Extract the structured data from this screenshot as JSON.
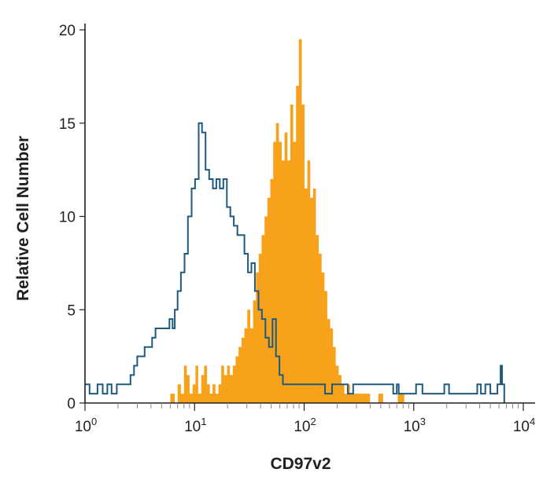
{
  "chart_data": {
    "type": "histogram",
    "title": "",
    "xlabel": "CD97v2",
    "ylabel": "Relative Cell Number",
    "x_scale": "log",
    "xlim": [
      1,
      10000
    ],
    "ylim": [
      0,
      20
    ],
    "x_ticks": [
      {
        "value": 1,
        "base": "10",
        "exp": "0"
      },
      {
        "value": 10,
        "base": "10",
        "exp": "1"
      },
      {
        "value": 100,
        "base": "10",
        "exp": "2"
      },
      {
        "value": 1000,
        "base": "10",
        "exp": "3"
      },
      {
        "value": 10000,
        "base": "10",
        "exp": "4"
      }
    ],
    "y_ticks": [
      "0",
      "5",
      "10",
      "15",
      "20"
    ],
    "grid": false,
    "legend": "none",
    "series": [
      {
        "kind": "filled",
        "color": "#f8a21c",
        "points": [
          [
            6.0,
            0
          ],
          [
            6.0,
            0.5
          ],
          [
            6.6,
            0.5
          ],
          [
            6.6,
            0
          ],
          [
            7.0,
            0
          ],
          [
            7.0,
            1.0
          ],
          [
            7.5,
            1.0
          ],
          [
            7.5,
            0.5
          ],
          [
            8.0,
            0.5
          ],
          [
            8.0,
            2.0
          ],
          [
            8.5,
            2.0
          ],
          [
            8.5,
            1.5
          ],
          [
            9.0,
            1.5
          ],
          [
            9.0,
            0.5
          ],
          [
            9.6,
            0.5
          ],
          [
            9.6,
            1.0
          ],
          [
            10.2,
            1.0
          ],
          [
            10.2,
            2.0
          ],
          [
            10.8,
            2.0
          ],
          [
            10.8,
            0.5
          ],
          [
            11.5,
            0.5
          ],
          [
            11.5,
            1.5
          ],
          [
            12.2,
            1.5
          ],
          [
            12.2,
            2.0
          ],
          [
            13.0,
            2.0
          ],
          [
            13.0,
            1.0
          ],
          [
            13.8,
            1.0
          ],
          [
            13.8,
            0.5
          ],
          [
            14.6,
            0.5
          ],
          [
            14.6,
            1.0
          ],
          [
            15.5,
            1.0
          ],
          [
            15.5,
            0.5
          ],
          [
            16.5,
            0.5
          ],
          [
            16.5,
            1.0
          ],
          [
            17.5,
            1.0
          ],
          [
            17.5,
            2.0
          ],
          [
            18.6,
            2.0
          ],
          [
            18.6,
            1.5
          ],
          [
            19.8,
            1.5
          ],
          [
            19.8,
            2.0
          ],
          [
            21.0,
            2.0
          ],
          [
            21.0,
            1.5
          ],
          [
            22.3,
            1.5
          ],
          [
            22.3,
            2.0
          ],
          [
            23.7,
            2.0
          ],
          [
            23.7,
            2.5
          ],
          [
            25.2,
            2.5
          ],
          [
            25.2,
            3.0
          ],
          [
            26.8,
            3.0
          ],
          [
            26.8,
            3.5
          ],
          [
            28.5,
            3.5
          ],
          [
            28.5,
            4.0
          ],
          [
            30.3,
            4.0
          ],
          [
            30.3,
            5.0
          ],
          [
            32.2,
            5.0
          ],
          [
            32.2,
            4.0
          ],
          [
            34.2,
            4.0
          ],
          [
            34.2,
            5.5
          ],
          [
            36.3,
            5.5
          ],
          [
            36.3,
            7.0
          ],
          [
            38.5,
            7.0
          ],
          [
            38.5,
            8.0
          ],
          [
            40.9,
            8.0
          ],
          [
            40.9,
            9.0
          ],
          [
            43.5,
            9.0
          ],
          [
            43.5,
            10.0
          ],
          [
            46.2,
            10.0
          ],
          [
            46.2,
            11.0
          ],
          [
            49.1,
            11.0
          ],
          [
            49.1,
            12.0
          ],
          [
            52.2,
            12.0
          ],
          [
            52.2,
            14.0
          ],
          [
            55.4,
            14.0
          ],
          [
            55.4,
            15.0
          ],
          [
            58.8,
            15.0
          ],
          [
            58.8,
            14.0
          ],
          [
            62.4,
            14.0
          ],
          [
            62.4,
            13.0
          ],
          [
            66.3,
            13.0
          ],
          [
            66.3,
            14.5
          ],
          [
            70.4,
            14.5
          ],
          [
            70.4,
            13.0
          ],
          [
            74.8,
            13.0
          ],
          [
            74.8,
            16.0
          ],
          [
            79.4,
            16.0
          ],
          [
            79.4,
            14.0
          ],
          [
            84.3,
            14.0
          ],
          [
            84.3,
            17.0
          ],
          [
            89.5,
            17.0
          ],
          [
            89.5,
            19.5
          ],
          [
            95.0,
            19.5
          ],
          [
            95.0,
            16.0
          ],
          [
            100.8,
            16.0
          ],
          [
            100.8,
            11.5
          ],
          [
            107.0,
            11.5
          ],
          [
            107.0,
            13.0
          ],
          [
            113.6,
            13.0
          ],
          [
            113.6,
            11.0
          ],
          [
            120.6,
            11.0
          ],
          [
            120.6,
            11.5
          ],
          [
            128.0,
            11.5
          ],
          [
            128.0,
            9.0
          ],
          [
            135.9,
            9.0
          ],
          [
            135.9,
            8.0
          ],
          [
            144.3,
            8.0
          ],
          [
            144.3,
            7.0
          ],
          [
            153.2,
            7.0
          ],
          [
            153.2,
            6.0
          ],
          [
            162.6,
            6.0
          ],
          [
            162.6,
            4.5
          ],
          [
            172.6,
            4.5
          ],
          [
            172.6,
            4.0
          ],
          [
            183.2,
            4.0
          ],
          [
            183.2,
            3.0
          ],
          [
            194.5,
            3.0
          ],
          [
            194.5,
            2.0
          ],
          [
            206.5,
            2.0
          ],
          [
            206.5,
            1.5
          ],
          [
            219.2,
            1.5
          ],
          [
            219.2,
            1.0
          ],
          [
            232.7,
            1.0
          ],
          [
            232.7,
            0.5
          ],
          [
            247.0,
            0.5
          ],
          [
            247.0,
            1.0
          ],
          [
            262.2,
            1.0
          ],
          [
            262.2,
            0.5
          ],
          [
            330,
            0.5
          ],
          [
            330,
            0.5
          ],
          [
            350,
            0.5
          ],
          [
            350,
            0.5
          ],
          [
            400,
            0.5
          ],
          [
            400,
            0
          ]
        ],
        "extra_bars": [
          [
            500,
            0.5
          ],
          [
            750,
            0.5
          ],
          [
            780,
            0.5
          ]
        ]
      },
      {
        "kind": "outline",
        "color": "#1e5a7d",
        "points": [
          [
            1.0,
            1.0
          ],
          [
            1.1,
            1.0
          ],
          [
            1.1,
            0.5
          ],
          [
            1.3,
            0.5
          ],
          [
            1.3,
            1.0
          ],
          [
            1.45,
            1.0
          ],
          [
            1.45,
            0.5
          ],
          [
            1.6,
            0.5
          ],
          [
            1.6,
            1.0
          ],
          [
            1.75,
            1.0
          ],
          [
            1.75,
            0.5
          ],
          [
            1.95,
            0.5
          ],
          [
            1.95,
            1.0
          ],
          [
            2.6,
            1.0
          ],
          [
            2.6,
            1.5
          ],
          [
            2.8,
            1.5
          ],
          [
            2.8,
            2.0
          ],
          [
            3.0,
            2.0
          ],
          [
            3.0,
            2.5
          ],
          [
            3.5,
            2.5
          ],
          [
            3.5,
            3.0
          ],
          [
            4.1,
            3.0
          ],
          [
            4.1,
            3.5
          ],
          [
            4.4,
            3.5
          ],
          [
            4.4,
            4.0
          ],
          [
            5.9,
            4.0
          ],
          [
            5.9,
            4.5
          ],
          [
            6.3,
            4.5
          ],
          [
            6.3,
            4.0
          ],
          [
            6.6,
            4.0
          ],
          [
            6.6,
            5.0
          ],
          [
            7.0,
            5.0
          ],
          [
            7.0,
            6.0
          ],
          [
            7.5,
            6.0
          ],
          [
            7.5,
            7.0
          ],
          [
            8.1,
            7.0
          ],
          [
            8.1,
            8.0
          ],
          [
            8.7,
            8.0
          ],
          [
            8.7,
            10.0
          ],
          [
            9.4,
            10.0
          ],
          [
            9.4,
            11.5
          ],
          [
            10.1,
            11.5
          ],
          [
            10.1,
            12.0
          ],
          [
            10.9,
            12.0
          ],
          [
            10.9,
            15.0
          ],
          [
            11.7,
            15.0
          ],
          [
            11.7,
            14.5
          ],
          [
            12.6,
            14.5
          ],
          [
            12.6,
            12.5
          ],
          [
            13.6,
            12.5
          ],
          [
            13.6,
            12.0
          ],
          [
            14.7,
            12.0
          ],
          [
            14.7,
            11.5
          ],
          [
            15.8,
            11.5
          ],
          [
            15.8,
            12.0
          ],
          [
            17.0,
            12.0
          ],
          [
            17.0,
            11.5
          ],
          [
            18.3,
            11.5
          ],
          [
            18.3,
            12.0
          ],
          [
            19.7,
            12.0
          ],
          [
            19.7,
            10.5
          ],
          [
            21.2,
            10.5
          ],
          [
            21.2,
            10.0
          ],
          [
            22.8,
            10.0
          ],
          [
            22.8,
            9.5
          ],
          [
            24.6,
            9.5
          ],
          [
            24.6,
            9.0
          ],
          [
            26.5,
            9.0
          ],
          [
            26.5,
            9.0
          ],
          [
            28.5,
            9.0
          ],
          [
            28.5,
            8.0
          ],
          [
            30.7,
            8.0
          ],
          [
            30.7,
            7.0
          ],
          [
            33.0,
            7.0
          ],
          [
            33.0,
            7.5
          ],
          [
            35.5,
            7.5
          ],
          [
            35.5,
            6.0
          ],
          [
            38.3,
            6.0
          ],
          [
            38.3,
            5.0
          ],
          [
            41.2,
            5.0
          ],
          [
            41.2,
            4.5
          ],
          [
            44.3,
            4.5
          ],
          [
            44.3,
            3.5
          ],
          [
            47.7,
            3.5
          ],
          [
            47.7,
            3.0
          ],
          [
            51.4,
            3.0
          ],
          [
            51.4,
            4.5
          ],
          [
            55.3,
            4.5
          ],
          [
            55.3,
            2.5
          ],
          [
            59.5,
            2.5
          ],
          [
            59.5,
            1.5
          ],
          [
            64.0,
            1.5
          ],
          [
            64.0,
            1.0
          ],
          [
            155,
            1.0
          ],
          [
            155,
            0.5
          ],
          [
            180,
            0.5
          ],
          [
            180,
            1.0
          ],
          [
            250,
            1.0
          ],
          [
            250,
            0.5
          ],
          [
            280,
            0.5
          ],
          [
            280,
            1.0
          ],
          [
            650,
            1.0
          ],
          [
            650,
            0.5
          ],
          [
            700,
            0.5
          ],
          [
            700,
            1.0
          ],
          [
            730,
            1.0
          ],
          [
            730,
            0.5
          ],
          [
            900,
            0.5
          ],
          [
            900,
            0.5
          ],
          [
            1050,
            0.5
          ],
          [
            1050,
            1.0
          ],
          [
            1200,
            1.0
          ],
          [
            1200,
            0.5
          ],
          [
            1350,
            0.5
          ],
          [
            1350,
            0.5
          ],
          [
            1900,
            0.5
          ],
          [
            1900,
            1.0
          ],
          [
            2100,
            1.0
          ],
          [
            2100,
            0.5
          ],
          [
            3000,
            0.5
          ],
          [
            3000,
            0.5
          ],
          [
            3800,
            0.5
          ],
          [
            3800,
            1.0
          ],
          [
            4100,
            1.0
          ],
          [
            4100,
            0.5
          ],
          [
            4500,
            0.5
          ],
          [
            4500,
            1.0
          ],
          [
            5000,
            1.0
          ],
          [
            5000,
            0.5
          ],
          [
            5800,
            0.5
          ],
          [
            5800,
            1.0
          ],
          [
            6200,
            1.0
          ],
          [
            6200,
            2.0
          ],
          [
            6400,
            2.0
          ],
          [
            6400,
            1.0
          ],
          [
            6700,
            1.0
          ],
          [
            6700,
            0
          ]
        ]
      }
    ]
  }
}
